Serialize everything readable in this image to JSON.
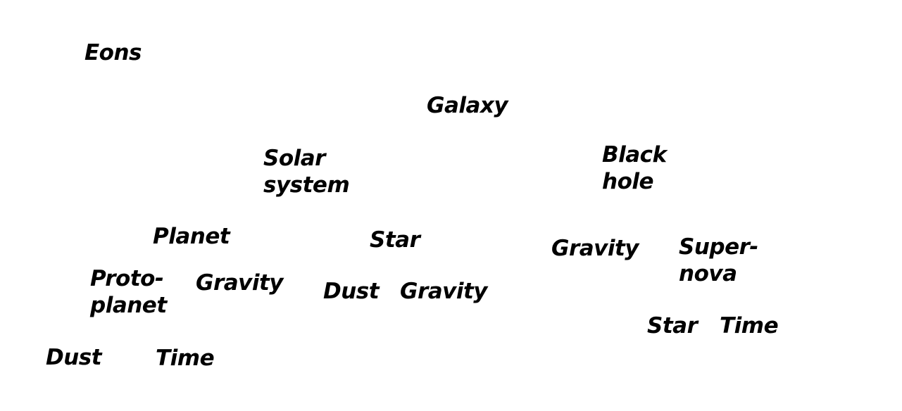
{
  "nodes": {
    "eons": "Eons",
    "galaxy": "Galaxy",
    "solar_system": [
      "Solar",
      "system"
    ],
    "black_hole": [
      "Black",
      "hole"
    ],
    "planet": "Planet",
    "star_1": "Star",
    "gravity_1": "Gravity",
    "supernova": [
      "Super-",
      "nova"
    ],
    "protoplanet": [
      "Proto-",
      "planet"
    ],
    "gravity_2": "Gravity",
    "dust_1": "Dust",
    "gravity_3": "Gravity",
    "star_2": "Star",
    "time_1": "Time",
    "dust_2": "Dust",
    "time_2": "Time"
  },
  "colors": {
    "text": "#000000",
    "background": "#ffffff"
  }
}
